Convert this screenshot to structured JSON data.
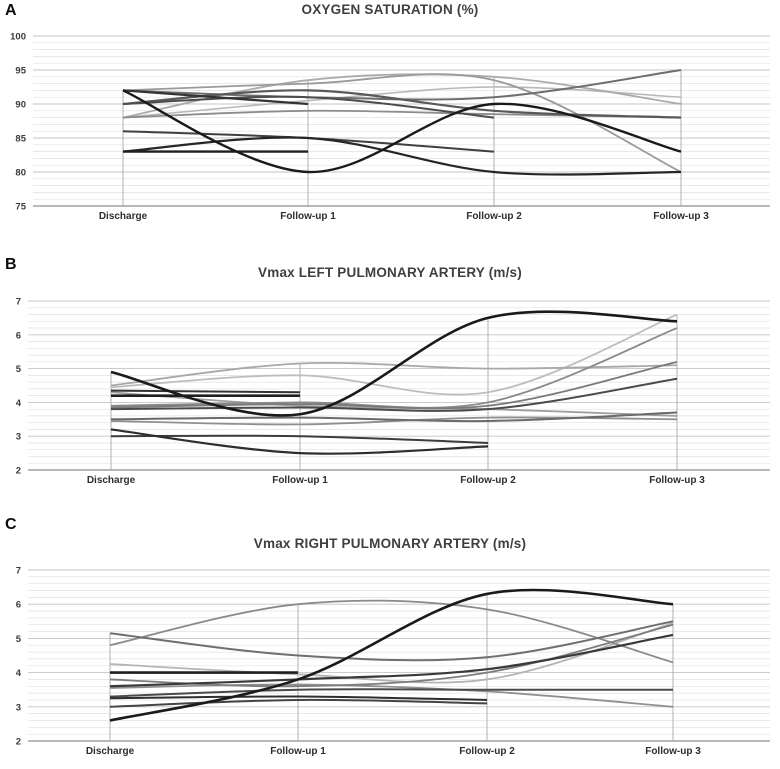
{
  "figure_title": "",
  "panel_letters": [
    "A",
    "B",
    "C"
  ],
  "colors": {
    "background": "#ffffff",
    "minor_grid": "#e2e2e2",
    "major_grid": "#c4c4c4",
    "axis_line": "#8f8f8f",
    "category_line": "#a8a8a8",
    "title_text": "#3f3f3f",
    "tick_text": "#3a3a3a"
  },
  "chart_data": [
    {
      "type": "line",
      "panel_label": "A",
      "title": "OXYGEN SATURATION (%)",
      "categories": [
        "Discharge",
        "Follow-up 1",
        "Follow-up 2",
        "Follow-up 3"
      ],
      "y_axis": {
        "min": 75,
        "max": 100,
        "major_step": 5,
        "minor_step": 1,
        "tick_labels": [
          "100",
          "95",
          "90",
          "85",
          "80",
          "75"
        ]
      },
      "legend": false,
      "grid": "horizontal-minor",
      "line_style": "smoothed",
      "series": [
        {
          "color": "#b8b8b8",
          "width": 1.6,
          "values": [
            88,
            90.5,
            92.5,
            91
          ]
        },
        {
          "color": "#ababab",
          "width": 1.8,
          "values": [
            88,
            93.5,
            94,
            90
          ]
        },
        {
          "color": "#9a9a9a",
          "width": 1.8,
          "values": [
            92,
            93,
            93.5,
            80
          ]
        },
        {
          "color": "#8c8c8c",
          "width": 1.8,
          "values": [
            88,
            89,
            88.5,
            88
          ]
        },
        {
          "color": "#6e6e6e",
          "width": 2.0,
          "values": [
            92,
            91,
            91,
            95
          ]
        },
        {
          "color": "#595959",
          "width": 2.2,
          "values": [
            90,
            92,
            89,
            88
          ]
        },
        {
          "color": "#4d4d4d",
          "width": 2.0,
          "values": [
            90,
            91,
            88,
            null
          ]
        },
        {
          "color": "#404040",
          "width": 2.0,
          "values": [
            86,
            85,
            83,
            null
          ]
        },
        {
          "color": "#333333",
          "width": 2.2,
          "values": [
            92,
            90,
            null,
            null
          ]
        },
        {
          "color": "#262626",
          "width": 2.2,
          "values": [
            83,
            85,
            80,
            80
          ]
        },
        {
          "color": "#1f1f1f",
          "width": 2.4,
          "values": [
            83,
            83,
            null,
            null
          ]
        },
        {
          "color": "#1a1a1a",
          "width": 2.4,
          "values": [
            92,
            80,
            90,
            83
          ]
        }
      ]
    },
    {
      "type": "line",
      "panel_label": "B",
      "title": "Vmax LEFT PULMONARY ARTERY (m/s)",
      "categories": [
        "Discharge",
        "Follow-up 1",
        "Follow-up 2",
        "Follow-up 3"
      ],
      "y_axis": {
        "min": 2,
        "max": 7,
        "major_step": 1,
        "minor_step": 0.2,
        "tick_labels": [
          "7",
          "6",
          "5",
          "4",
          "3",
          "2"
        ]
      },
      "legend": false,
      "grid": "horizontal-minor",
      "line_style": "smoothed",
      "series": [
        {
          "color": "#bdbdbd",
          "width": 1.8,
          "values": [
            4.45,
            4.8,
            4.3,
            6.6
          ]
        },
        {
          "color": "#a8a8a8",
          "width": 1.8,
          "values": [
            4.5,
            5.15,
            5.0,
            5.1
          ]
        },
        {
          "color": "#9f9f9f",
          "width": 1.8,
          "values": [
            4.3,
            3.9,
            3.8,
            3.6
          ]
        },
        {
          "color": "#8f8f8f",
          "width": 1.8,
          "values": [
            3.45,
            3.35,
            3.55,
            3.5
          ]
        },
        {
          "color": "#8a8a8a",
          "width": 1.8,
          "values": [
            3.9,
            4.0,
            4.0,
            6.2
          ]
        },
        {
          "color": "#7a7a7a",
          "width": 1.8,
          "values": [
            3.85,
            3.95,
            3.9,
            5.2
          ]
        },
        {
          "color": "#6a6a6a",
          "width": 2.0,
          "values": [
            3.5,
            3.55,
            3.45,
            3.7
          ]
        },
        {
          "color": "#4a4a4a",
          "width": 2.0,
          "values": [
            3.8,
            3.85,
            3.8,
            4.7
          ]
        },
        {
          "color": "#3c3c3c",
          "width": 2.0,
          "values": [
            3.0,
            3.0,
            2.8,
            null
          ]
        },
        {
          "color": "#333333",
          "width": 2.0,
          "values": [
            4.35,
            4.3,
            null,
            null
          ]
        },
        {
          "color": "#2e2e2e",
          "width": 2.2,
          "values": [
            3.2,
            2.5,
            2.7,
            null
          ]
        },
        {
          "color": "#1f1f1f",
          "width": 2.6,
          "values": [
            4.2,
            4.2,
            null,
            null
          ]
        },
        {
          "color": "#1a1a1a",
          "width": 2.6,
          "values": [
            4.9,
            3.65,
            6.5,
            6.4
          ]
        }
      ]
    },
    {
      "type": "line",
      "panel_label": "C",
      "title": "Vmax RIGHT PULMONARY ARTERY (m/s)",
      "categories": [
        "Discharge",
        "Follow-up 1",
        "Follow-up 2",
        "Follow-up 3"
      ],
      "y_axis": {
        "min": 2,
        "max": 7,
        "major_step": 1,
        "minor_step": 0.2,
        "tick_labels": [
          "7",
          "6",
          "5",
          "4",
          "3",
          "2"
        ]
      },
      "legend": false,
      "grid": "horizontal-minor",
      "line_style": "smoothed",
      "series": [
        {
          "color": "#b5b5b5",
          "width": 1.8,
          "values": [
            4.25,
            3.95,
            3.8,
            5.45
          ]
        },
        {
          "color": "#909090",
          "width": 1.8,
          "values": [
            3.55,
            3.65,
            3.45,
            3.0
          ]
        },
        {
          "color": "#8a8a8a",
          "width": 1.8,
          "values": [
            4.8,
            6.0,
            5.85,
            4.3
          ]
        },
        {
          "color": "#7d7d7d",
          "width": 1.8,
          "values": [
            3.8,
            3.6,
            4.0,
            5.4
          ]
        },
        {
          "color": "#6f6f6f",
          "width": 2.0,
          "values": [
            5.15,
            4.5,
            4.45,
            5.5
          ]
        },
        {
          "color": "#4a4a4a",
          "width": 2.0,
          "values": [
            3.3,
            3.5,
            3.5,
            3.5
          ]
        },
        {
          "color": "#444444",
          "width": 2.0,
          "values": [
            3.0,
            3.2,
            3.1,
            null
          ]
        },
        {
          "color": "#3a3a3a",
          "width": 2.2,
          "values": [
            3.6,
            3.8,
            4.1,
            5.1
          ]
        },
        {
          "color": "#2e2e2e",
          "width": 2.0,
          "values": [
            3.25,
            3.3,
            3.2,
            null
          ]
        },
        {
          "color": "#1f1f1f",
          "width": 2.6,
          "values": [
            4.0,
            4.0,
            null,
            null
          ]
        },
        {
          "color": "#1a1a1a",
          "width": 2.6,
          "values": [
            2.6,
            3.8,
            6.3,
            6.0
          ]
        }
      ]
    }
  ]
}
